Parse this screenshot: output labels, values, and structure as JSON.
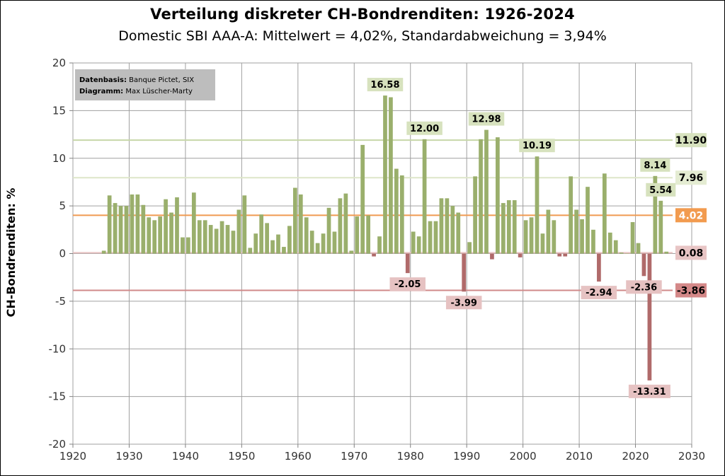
{
  "chart_data": {
    "type": "bar",
    "title": "Verteilung diskreter CH-Bondrenditen: 1926-2024",
    "subtitle": "Domestic SBI AAA-A: Mittelwert = 4,02%, Standardabweichung = 3,94%",
    "ylabel": "CH-Bondrenditen: %",
    "xlabel": "",
    "xlim": [
      1920,
      2030
    ],
    "ylim": [
      -20,
      20
    ],
    "x_ticks": [
      "1920",
      "1930",
      "1940",
      "1950",
      "1960",
      "1970",
      "1980",
      "1990",
      "2000",
      "2010",
      "2020",
      "2030"
    ],
    "y_ticks": [
      "20",
      "15",
      "10",
      "5",
      "0",
      "-5",
      "-10",
      "-15",
      "-20"
    ],
    "grid": true,
    "colors": {
      "positive": "#9aaf6c",
      "negative": "#b06a6a"
    },
    "note": {
      "line1_bold": "Datenbasis:",
      "line1": "Banque Pictet, SIX",
      "line2_bold": "Diagramm:",
      "line2": "Max Lüscher-Marty"
    },
    "x": [
      1925,
      1926,
      1927,
      1928,
      1929,
      1930,
      1931,
      1932,
      1933,
      1934,
      1935,
      1936,
      1937,
      1938,
      1939,
      1940,
      1941,
      1942,
      1943,
      1944,
      1945,
      1946,
      1947,
      1948,
      1949,
      1950,
      1951,
      1952,
      1953,
      1954,
      1955,
      1956,
      1957,
      1958,
      1959,
      1960,
      1961,
      1962,
      1963,
      1964,
      1965,
      1966,
      1967,
      1968,
      1969,
      1970,
      1971,
      1972,
      1973,
      1974,
      1975,
      1976,
      1977,
      1978,
      1979,
      1980,
      1981,
      1982,
      1983,
      1984,
      1985,
      1986,
      1987,
      1988,
      1989,
      1990,
      1991,
      1992,
      1993,
      1994,
      1995,
      1996,
      1997,
      1998,
      1999,
      2000,
      2001,
      2002,
      2003,
      2004,
      2005,
      2006,
      2007,
      2008,
      2009,
      2010,
      2011,
      2012,
      2013,
      2014,
      2015,
      2016,
      2017,
      2018,
      2019,
      2020,
      2021,
      2022,
      2023,
      2024,
      2025
    ],
    "values": [
      0.3,
      6.1,
      5.3,
      5.0,
      5.0,
      6.2,
      6.2,
      5.1,
      3.8,
      3.5,
      3.9,
      5.7,
      4.3,
      5.9,
      1.7,
      1.7,
      6.4,
      3.5,
      3.5,
      3.0,
      2.6,
      3.4,
      3.0,
      2.4,
      4.6,
      6.1,
      0.6,
      2.1,
      4.1,
      3.2,
      1.4,
      2.0,
      0.7,
      2.9,
      6.9,
      6.2,
      3.8,
      2.4,
      1.1,
      2.1,
      4.8,
      2.3,
      5.8,
      6.3,
      0.3,
      3.9,
      11.4,
      4.0,
      -0.3,
      1.8,
      16.58,
      16.4,
      8.9,
      8.2,
      -2.05,
      2.3,
      1.8,
      12.0,
      3.4,
      3.4,
      5.8,
      5.8,
      5.0,
      4.3,
      -3.99,
      1.2,
      8.1,
      12.0,
      12.98,
      -0.6,
      12.2,
      5.3,
      5.6,
      5.6,
      -0.4,
      3.5,
      3.8,
      10.19,
      2.1,
      4.6,
      3.5,
      -0.3,
      -0.3,
      8.1,
      4.6,
      3.6,
      7.0,
      2.5,
      -2.94,
      8.4,
      2.2,
      1.4,
      0.1,
      0.0,
      3.3,
      1.1,
      -2.36,
      -13.31,
      8.14,
      5.54,
      0.2
    ],
    "data_labels": [
      {
        "year": 1975,
        "value": 16.58,
        "text": "16.58"
      },
      {
        "year": 1982,
        "value": 12.0,
        "text": "12.00"
      },
      {
        "year": 1993,
        "value": 12.98,
        "text": "12.98"
      },
      {
        "year": 2002,
        "value": 10.19,
        "text": "10.19"
      },
      {
        "year": 2023,
        "value": 8.14,
        "text": "8.14"
      },
      {
        "year": 2024,
        "value": 5.54,
        "text": "5.54"
      },
      {
        "year": 1979,
        "value": -2.05,
        "text": "-2.05"
      },
      {
        "year": 1989,
        "value": -3.99,
        "text": "-3.99"
      },
      {
        "year": 2013,
        "value": -2.94,
        "text": "-2.94"
      },
      {
        "year": 2021,
        "value": -2.36,
        "text": "-2.36"
      },
      {
        "year": 2022,
        "value": -13.31,
        "text": "-13.31"
      }
    ],
    "reference_lines": [
      {
        "value": 11.9,
        "text": "11.90",
        "color": "#c7d7a8",
        "bg": "#d7e2be",
        "fg": "#000000"
      },
      {
        "value": 7.96,
        "text": "7.96",
        "color": "#dde6c8",
        "bg": "#e4ecd2",
        "fg": "#000000"
      },
      {
        "value": 4.02,
        "text": "4.02",
        "color": "#f09a50",
        "bg": "#f29b4f",
        "fg": "#ffffff"
      },
      {
        "value": 0.08,
        "text": "0.08",
        "color": "#e8c2c2",
        "bg": "#e8c5c5",
        "fg": "#000000"
      },
      {
        "value": -3.86,
        "text": "-3.86",
        "color": "#d08a8a",
        "bg": "#d48888",
        "fg": "#000000"
      }
    ]
  }
}
